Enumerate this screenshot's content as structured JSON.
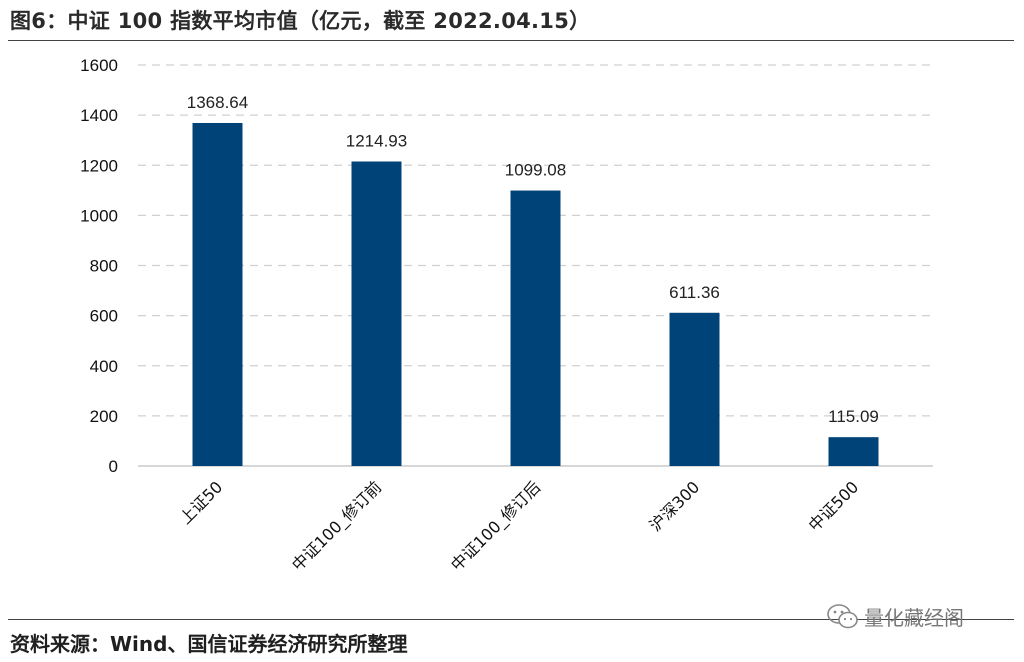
{
  "figure": {
    "title": "图6：中证 100 指数平均市值（亿元，截至 2022.04.15）",
    "source": "资料来源：Wind、国信证券经济研究所整理",
    "watermark": "量化藏经阁",
    "watermark_icon": "wechat-icon"
  },
  "chart_data": {
    "type": "bar",
    "title": "",
    "xlabel": "",
    "ylabel": "",
    "categories": [
      "上证50",
      "中证100_修订前",
      "中证100_修订后",
      "沪深300",
      "中证500"
    ],
    "values": [
      1368.64,
      1214.93,
      1099.08,
      611.36,
      115.09
    ],
    "data_labels": [
      "1368.64",
      "1214.93",
      "1099.08",
      "611.36",
      "115.09"
    ],
    "ylim": [
      0,
      1600
    ],
    "yticks": [
      0,
      200,
      400,
      600,
      800,
      1000,
      1200,
      1400,
      1600
    ],
    "grid": true,
    "legend": "none",
    "bar_color": "#004379"
  }
}
